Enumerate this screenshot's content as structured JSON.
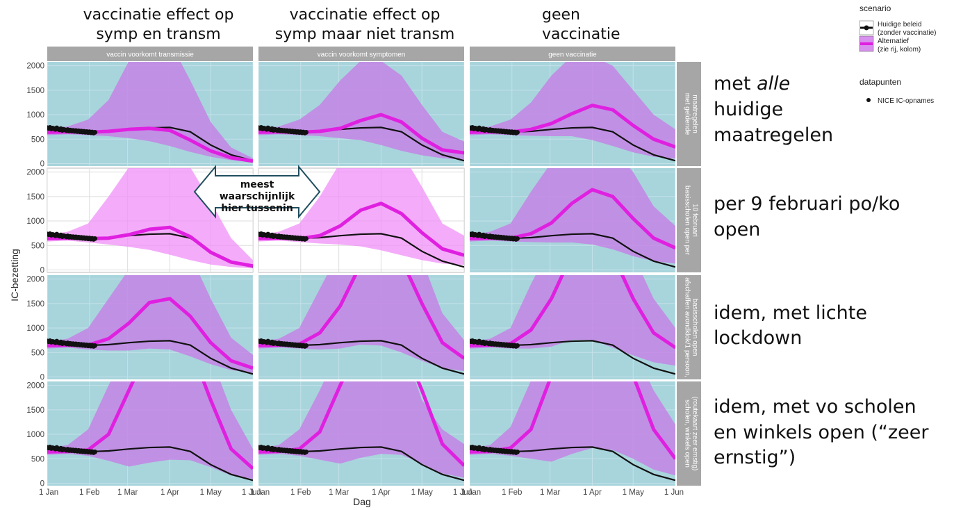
{
  "column_titles": [
    [
      "vaccinatie effect op",
      "symp en transm"
    ],
    [
      "vaccinatie effect op",
      "symp maar niet transm"
    ],
    [
      "geen",
      "vaccinatie"
    ]
  ],
  "row_annotations": [
    {
      "pre": "met ",
      "em": "alle",
      "lines": [
        "huidige",
        "maatregelen"
      ]
    },
    {
      "pre": "per 9 februari po/ko",
      "em": "",
      "lines": [
        "open"
      ]
    },
    {
      "pre": "idem, met lichte",
      "em": "",
      "lines": [
        "lockdown"
      ]
    },
    {
      "pre": "idem, met vo scholen",
      "em": "",
      "lines": [
        "en winkels open (“zeer",
        "ernstig”)"
      ]
    }
  ],
  "callout": {
    "lines": [
      "meest",
      "waarschijnlijk",
      "hier tussenin"
    ]
  },
  "colors": {
    "panel_bg": "#a8d4dc",
    "highlight_bg": "#ffffff",
    "strip_bg": "#a6a6a6",
    "current": "#111111",
    "alt": "#e020e0",
    "alt_band": "#c57ee6",
    "alt_band_bright": "#f090f8"
  },
  "chart_data": {
    "type": "line",
    "facet_columns": [
      "vaccin voorkomt transmissie",
      "vaccin voorkomt symptomen",
      "geen vaccinatie"
    ],
    "facet_rows": [
      "met geldende maatregelen",
      "basisscholen open per 10 februari",
      "afschaffen avondklok/1 persoon, basisscholen open",
      "scholen, winkels open (routekaart zeer ernstig)"
    ],
    "highlighted_panels": [
      [
        1,
        0
      ],
      [
        1,
        1
      ]
    ],
    "xlabel": "Dag",
    "ylabel": "IC-bezetting",
    "x_ticks": [
      "1 Jan",
      "1 Feb",
      "1 Mar",
      "1 Apr",
      "1 May",
      "1 Jun"
    ],
    "x_days": [
      0,
      31,
      59,
      90,
      120,
      151
    ],
    "y_ticks": [
      0,
      500,
      1000,
      1500,
      2000
    ],
    "ylim": [
      -50,
      2080
    ],
    "x": [
      0,
      15,
      30,
      45,
      60,
      75,
      90,
      105,
      120,
      135,
      151
    ],
    "legend": {
      "scenario_title": "scenario",
      "scenario_items": [
        "Huidige beleid",
        "(zonder vaccinatie)",
        "Alternatief",
        "(zie rij, kolom)"
      ],
      "points_title": "datapunten",
      "points_items": [
        "NICE IC-opnames"
      ]
    },
    "nice_points": {
      "x": [
        0,
        1,
        2,
        3,
        4,
        5,
        6,
        7,
        8,
        9,
        10,
        11,
        12,
        13,
        14,
        15,
        16,
        17,
        18,
        19,
        20,
        21,
        22,
        23,
        24,
        25,
        26,
        27,
        28,
        29,
        30,
        31,
        32,
        33,
        34,
        35
      ],
      "y": [
        735,
        720,
        740,
        710,
        725,
        715,
        700,
        730,
        705,
        690,
        715,
        680,
        700,
        690,
        675,
        695,
        670,
        685,
        665,
        680,
        660,
        675,
        655,
        670,
        650,
        665,
        645,
        660,
        640,
        655,
        635,
        650,
        630,
        645,
        625,
        640
      ]
    },
    "current_policy": [
      640,
      650,
      645,
      660,
      700,
      730,
      740,
      650,
      380,
      180,
      60
    ],
    "panels": [
      [
        {
          "alt": [
            640,
            650,
            640,
            660,
            700,
            720,
            680,
            480,
            260,
            120,
            50
          ],
          "lower": [
            580,
            600,
            580,
            560,
            520,
            460,
            360,
            240,
            140,
            70,
            30
          ],
          "upper": [
            720,
            760,
            900,
            1300,
            2100,
            2600,
            2500,
            1700,
            850,
            330,
            110
          ]
        },
        {
          "alt": [
            640,
            650,
            640,
            660,
            720,
            880,
            1000,
            850,
            520,
            280,
            220
          ],
          "lower": [
            580,
            600,
            580,
            560,
            520,
            480,
            380,
            260,
            170,
            110,
            80
          ],
          "upper": [
            720,
            760,
            900,
            1200,
            1700,
            2100,
            2100,
            1800,
            1200,
            650,
            450
          ]
        },
        {
          "alt": [
            640,
            650,
            645,
            700,
            820,
            1020,
            1190,
            1100,
            780,
            500,
            340
          ],
          "lower": [
            580,
            600,
            580,
            570,
            560,
            560,
            480,
            360,
            230,
            140,
            100
          ],
          "upper": [
            720,
            760,
            900,
            1250,
            1800,
            2200,
            2200,
            2000,
            1500,
            1000,
            700
          ]
        }
      ],
      [
        {
          "alt": [
            640,
            650,
            640,
            650,
            720,
            830,
            870,
            680,
            360,
            160,
            80
          ],
          "lower": [
            580,
            600,
            560,
            520,
            470,
            410,
            310,
            200,
            110,
            60,
            30
          ],
          "upper": [
            720,
            780,
            950,
            1500,
            2100,
            2500,
            2500,
            2100,
            1400,
            650,
            200
          ]
        },
        {
          "alt": [
            640,
            650,
            640,
            700,
            900,
            1220,
            1360,
            1150,
            760,
            430,
            300
          ],
          "lower": [
            580,
            600,
            570,
            540,
            520,
            480,
            400,
            300,
            200,
            130,
            100
          ],
          "upper": [
            720,
            780,
            950,
            1500,
            2200,
            2600,
            2600,
            2400,
            1700,
            950,
            700
          ]
        },
        {
          "alt": [
            640,
            650,
            650,
            740,
            960,
            1360,
            1640,
            1500,
            1050,
            650,
            450
          ],
          "lower": [
            580,
            600,
            580,
            570,
            560,
            560,
            520,
            420,
            280,
            180,
            130
          ],
          "upper": [
            720,
            780,
            950,
            1600,
            2200,
            2600,
            2600,
            2500,
            2000,
            1300,
            900
          ]
        }
      ],
      [
        {
          "alt": [
            640,
            650,
            650,
            780,
            1100,
            1520,
            1600,
            1240,
            700,
            330,
            180
          ],
          "lower": [
            580,
            600,
            560,
            540,
            540,
            580,
            560,
            420,
            260,
            140,
            80
          ],
          "upper": [
            720,
            780,
            1000,
            1600,
            2200,
            2600,
            2600,
            2500,
            1600,
            800,
            450
          ]
        },
        {
          "alt": [
            640,
            650,
            670,
            900,
            1450,
            2300,
            2700,
            2400,
            1500,
            700,
            380
          ],
          "lower": [
            580,
            600,
            580,
            560,
            580,
            660,
            640,
            500,
            330,
            180,
            120
          ],
          "upper": [
            720,
            780,
            1000,
            1800,
            2600,
            2900,
            2900,
            2800,
            2400,
            1300,
            750
          ]
        },
        {
          "alt": [
            640,
            650,
            680,
            960,
            1600,
            2500,
            2900,
            2500,
            1600,
            900,
            600
          ],
          "lower": [
            580,
            600,
            580,
            580,
            620,
            760,
            760,
            600,
            440,
            300,
            230
          ],
          "upper": [
            720,
            780,
            1000,
            1900,
            2700,
            3000,
            3000,
            2900,
            2500,
            1600,
            1000
          ]
        }
      ],
      [
        {
          "alt": [
            640,
            650,
            680,
            1000,
            1900,
            2800,
            3000,
            2800,
            1700,
            700,
            300
          ],
          "lower": [
            580,
            600,
            560,
            460,
            340,
            420,
            480,
            470,
            330,
            160,
            90
          ],
          "upper": [
            720,
            780,
            1100,
            2000,
            2800,
            3000,
            3000,
            2900,
            2600,
            1500,
            700
          ]
        },
        {
          "alt": [
            640,
            650,
            700,
            1050,
            2000,
            2900,
            3000,
            2900,
            1900,
            800,
            360
          ],
          "lower": [
            580,
            600,
            560,
            480,
            400,
            520,
            600,
            580,
            400,
            200,
            110
          ],
          "upper": [
            720,
            780,
            1100,
            1900,
            2800,
            3000,
            3000,
            2900,
            1700,
            1100,
            800
          ]
        },
        {
          "alt": [
            640,
            650,
            720,
            1100,
            2200,
            3000,
            3000,
            3000,
            2200,
            1100,
            500
          ],
          "lower": [
            580,
            600,
            560,
            500,
            440,
            600,
            720,
            680,
            500,
            280,
            160
          ],
          "upper": [
            720,
            780,
            1150,
            2100,
            2900,
            3000,
            3000,
            3000,
            2800,
            1900,
            1200
          ]
        }
      ]
    ]
  }
}
